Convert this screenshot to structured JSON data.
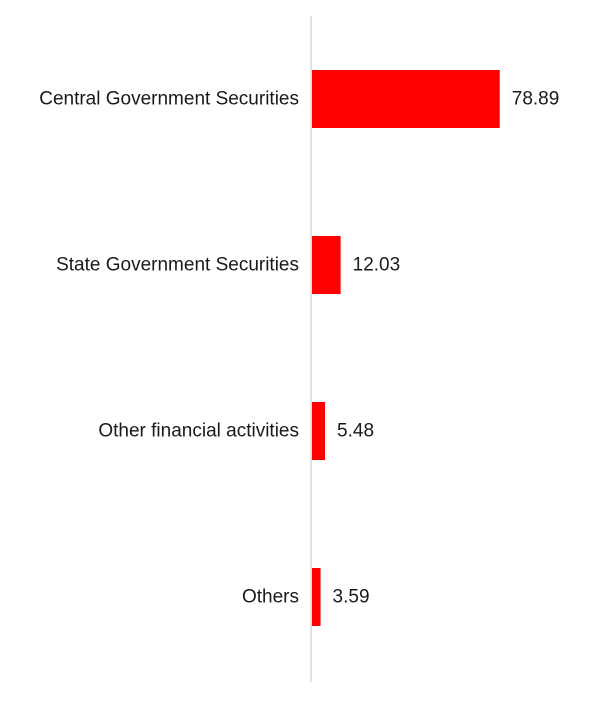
{
  "chart_data": {
    "type": "bar",
    "orientation": "horizontal",
    "categories": [
      "Central Government Securities",
      "State Government Securities",
      "Other financial activities",
      "Others"
    ],
    "values": [
      78.89,
      12.03,
      5.48,
      3.59
    ],
    "value_labels": [
      "78.89",
      "12.03",
      "5.48",
      "3.59"
    ],
    "title": "",
    "xlabel": "",
    "ylabel": "",
    "xlim": [
      0,
      100
    ],
    "grid": false,
    "legend": "none",
    "colors": {
      "bar": "#ff0000",
      "axis": "#d9d9d9",
      "text": "#1a1a1a"
    }
  }
}
